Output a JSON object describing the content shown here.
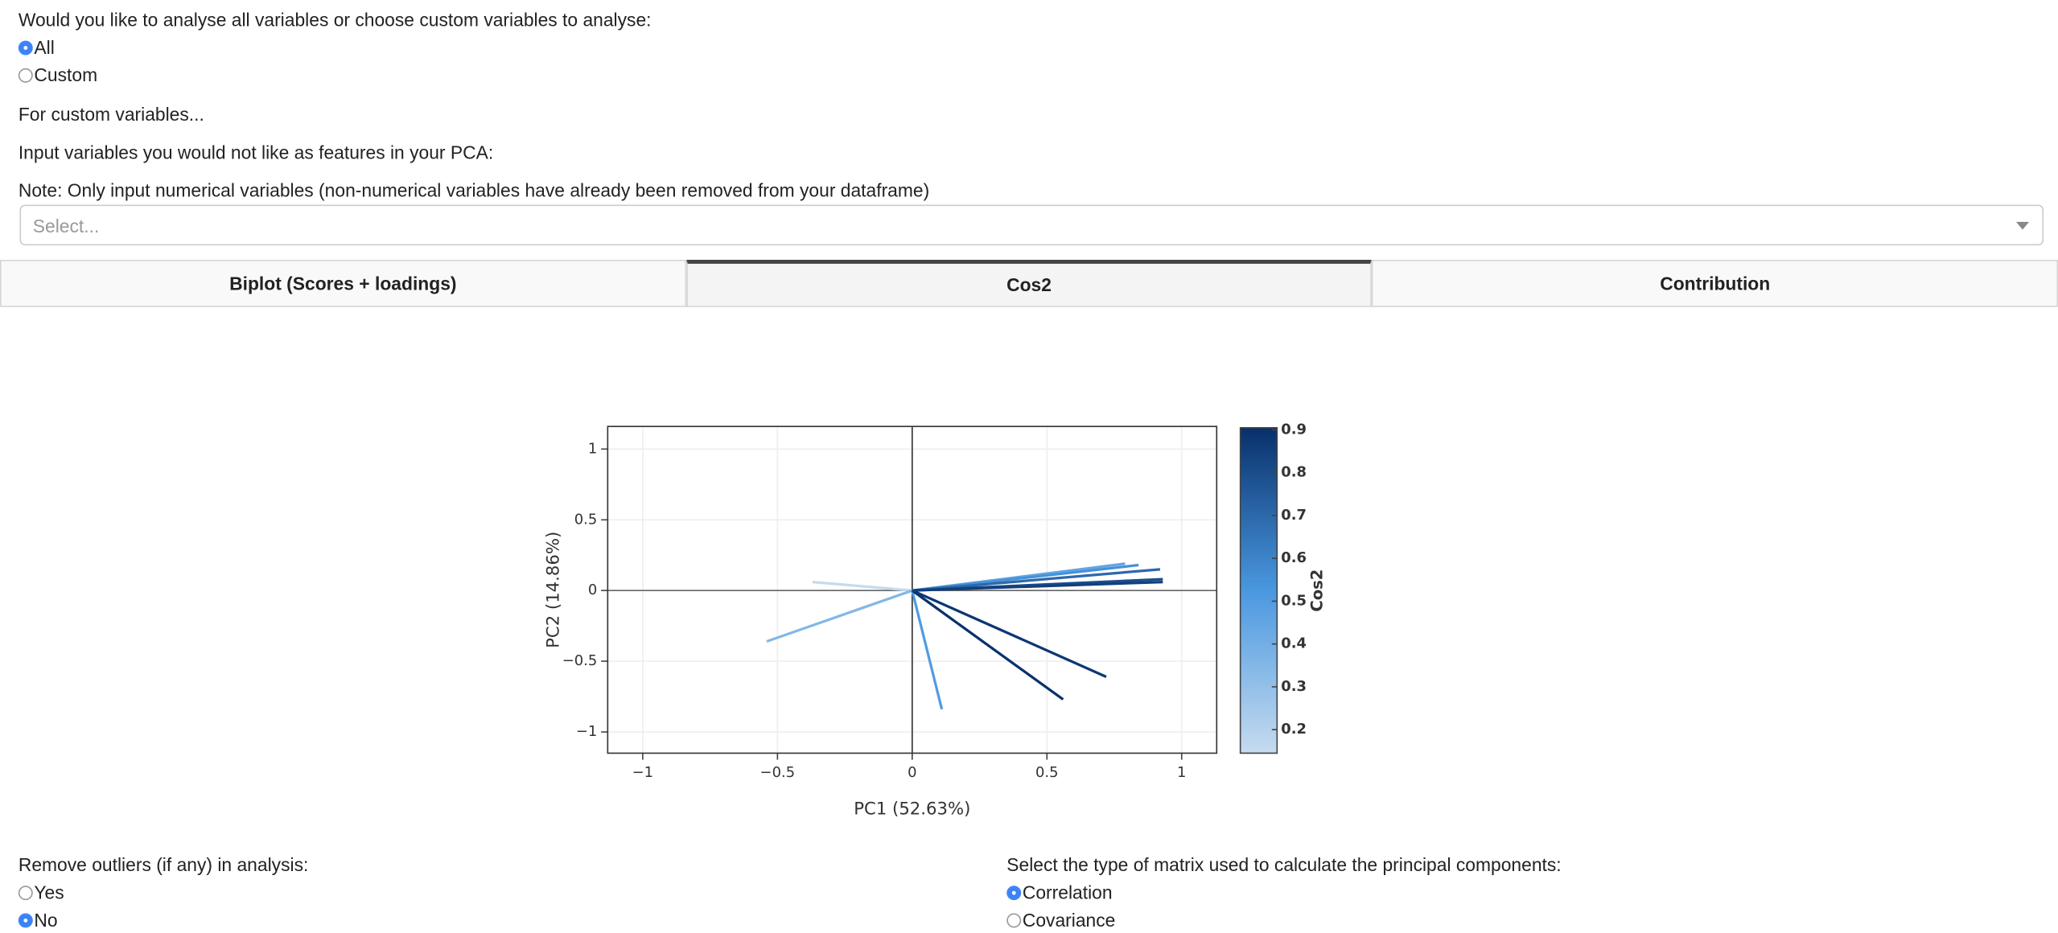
{
  "question": {
    "label": "Would you like to analyse all variables or choose custom variables to analyse:",
    "options": [
      "All",
      "Custom"
    ],
    "selected": 0
  },
  "custom_heading": "For custom variables...",
  "exclude_label": "Input variables you would not like as features in your PCA:",
  "note": "Note: Only input numerical variables (non-numerical variables have already been removed from your dataframe)",
  "select_placeholder": "Select...",
  "tabs": [
    "Biplot (Scores + loadings)",
    "Cos2",
    "Contribution"
  ],
  "active_tab": 1,
  "chart_data": {
    "type": "vectors",
    "xlabel": "PC1 (52.63%)",
    "ylabel": "PC2 (14.86%)",
    "x": [
      -0.37,
      -0.54,
      0.11,
      0.56,
      0.72,
      0.79,
      0.84,
      0.92,
      0.93,
      0.93
    ],
    "values": [
      0.06,
      -0.36,
      -0.84,
      -0.77,
      -0.61,
      0.19,
      0.18,
      0.15,
      0.08,
      0.06
    ],
    "cos2": [
      0.15,
      0.35,
      0.5,
      0.9,
      0.88,
      0.45,
      0.55,
      0.7,
      0.8,
      0.85
    ],
    "colorbar_title": "Cos2",
    "colorlim": [
      0.145,
      0.905
    ],
    "colorticks": [
      0.2,
      0.3,
      0.4,
      0.5,
      0.6,
      0.7,
      0.8,
      0.9
    ],
    "colorscale": [
      "#c6dbef",
      "#4a98e0",
      "#08306b"
    ],
    "xlim": [
      -1.13,
      1.13
    ],
    "ylim": [
      -1.15,
      1.16
    ],
    "xticks": [
      {
        "value": -1,
        "label": "−1"
      },
      {
        "value": -0.5,
        "label": "−0.5"
      },
      0,
      0.5,
      1
    ],
    "yticks": [
      {
        "value": -1,
        "label": "−1"
      },
      {
        "value": -0.5,
        "label": "−0.5"
      },
      0,
      0.5,
      1
    ],
    "grid": true
  },
  "outliers": {
    "label": "Remove outliers (if any) in analysis:",
    "options": [
      "Yes",
      "No"
    ],
    "selected": 1
  },
  "matrix": {
    "label": "Select the type of matrix used to calculate the principal components:",
    "options": [
      "Correlation",
      "Covariance"
    ],
    "selected": 0
  }
}
